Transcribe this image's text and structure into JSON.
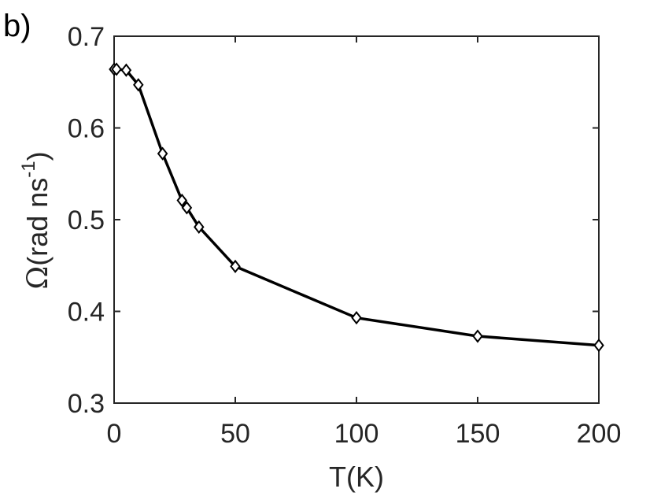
{
  "panel_label": "b)",
  "chart_data": {
    "type": "line",
    "xlabel": "T(K)",
    "ylabel": {
      "symbol": "Ω",
      "text": "(rad ns",
      "superscript": "-1",
      "close": ")"
    },
    "xlim": [
      0,
      200
    ],
    "ylim": [
      0.3,
      0.7
    ],
    "x_ticks": [
      0,
      50,
      100,
      150,
      200
    ],
    "x_tick_labels": [
      "0",
      "50",
      "100",
      "150",
      "200"
    ],
    "y_ticks": [
      0.3,
      0.4,
      0.5,
      0.6,
      0.7
    ],
    "y_tick_labels": [
      "0.3",
      "0.4",
      "0.5",
      "0.6",
      "0.7"
    ],
    "grid": false,
    "marker": "diamond",
    "series": [
      {
        "x": [
          0,
          1,
          5,
          10,
          20,
          28,
          30,
          35,
          50,
          100,
          150,
          200
        ],
        "y": [
          0.664,
          0.664,
          0.663,
          0.647,
          0.572,
          0.521,
          0.513,
          0.492,
          0.449,
          0.393,
          0.373,
          0.363
        ],
        "color": "#000000"
      }
    ]
  }
}
